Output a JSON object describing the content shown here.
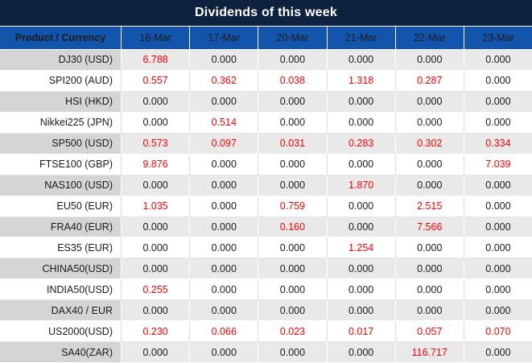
{
  "title": "Dividends of this week",
  "table": {
    "product_header": "Product / Currency",
    "date_headers": [
      "16-Mar",
      "17-Mar",
      "20-Mar",
      "21-Mar",
      "22-Mar",
      "23-Mar"
    ],
    "rows": [
      {
        "product": "DJ30 (USD)",
        "values": [
          "6.788",
          "0.000",
          "0.000",
          "0.000",
          "0.000",
          "0.000"
        ]
      },
      {
        "product": "SPI200 (AUD)",
        "values": [
          "0.557",
          "0.362",
          "0.038",
          "1.318",
          "0.287",
          "0.000"
        ]
      },
      {
        "product": "HSI (HKD)",
        "values": [
          "0.000",
          "0.000",
          "0.000",
          "0.000",
          "0.000",
          "0.000"
        ]
      },
      {
        "product": "Nikkei225 (JPN)",
        "values": [
          "0.000",
          "0.514",
          "0.000",
          "0.000",
          "0.000",
          "0.000"
        ]
      },
      {
        "product": "SP500 (USD)",
        "values": [
          "0.573",
          "0.097",
          "0.031",
          "0.283",
          "0.302",
          "0.334"
        ]
      },
      {
        "product": "FTSE100 (GBP)",
        "values": [
          "9.876",
          "0.000",
          "0.000",
          "0.000",
          "0.000",
          "7.039"
        ]
      },
      {
        "product": "NAS100 (USD)",
        "values": [
          "0.000",
          "0.000",
          "0.000",
          "1.870",
          "0.000",
          "0.000"
        ]
      },
      {
        "product": "EU50 (EUR)",
        "values": [
          "1.035",
          "0.000",
          "0.759",
          "0.000",
          "2.515",
          "0.000"
        ]
      },
      {
        "product": "FRA40 (EUR)",
        "values": [
          "0.000",
          "0.000",
          "0.160",
          "0.000",
          "7.566",
          "0.000"
        ]
      },
      {
        "product": "ES35 (EUR)",
        "values": [
          "0.000",
          "0.000",
          "0.000",
          "1.254",
          "0.000",
          "0.000"
        ]
      },
      {
        "product": "CHINA50(USD)",
        "values": [
          "0.000",
          "0.000",
          "0.000",
          "0.000",
          "0.000",
          "0.000"
        ]
      },
      {
        "product": "INDIA50(USD)",
        "values": [
          "0.255",
          "0.000",
          "0.000",
          "0.000",
          "0.000",
          "0.000"
        ]
      },
      {
        "product": "DAX40 / EUR",
        "values": [
          "0.000",
          "0.000",
          "0.000",
          "0.000",
          "0.000",
          "0.000"
        ]
      },
      {
        "product": "US2000(USD)",
        "values": [
          "0.230",
          "0.066",
          "0.023",
          "0.017",
          "0.057",
          "0.070"
        ]
      },
      {
        "product": "SA40(ZAR)",
        "values": [
          "0.000",
          "0.000",
          "0.000",
          "0.000",
          "116.717",
          "0.000"
        ]
      }
    ]
  },
  "colors": {
    "title_bg": "#0e2240",
    "header_bg": "#1155ad",
    "value_nonzero_color": "#ff0000",
    "value_zero_color": "#1a1a1a",
    "gray_label_bg": "#d5d5d5",
    "gray_value_bg": "#e9e9e9"
  }
}
